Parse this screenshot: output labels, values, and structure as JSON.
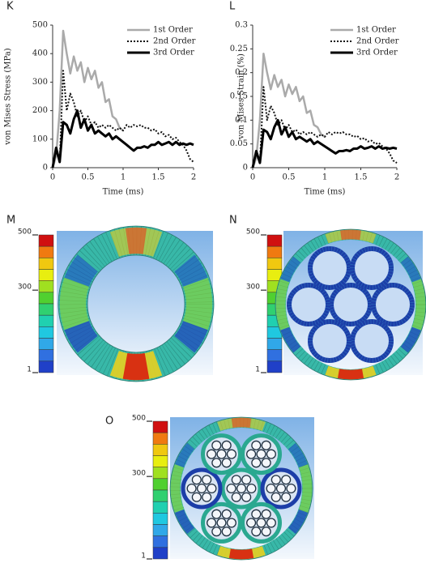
{
  "chart_data": [
    {
      "type": "line",
      "panel": "K",
      "ylabel": "von Mises Stress (MPa)",
      "xlabel": "Time (ms)",
      "xlim": [
        0,
        2
      ],
      "xticks": [
        0,
        0.5,
        1,
        1.5,
        2
      ],
      "ylim": [
        0,
        500
      ],
      "yticks": [
        0,
        100,
        200,
        300,
        400,
        500
      ],
      "legend": "top-right",
      "x": [
        0,
        0.05,
        0.1,
        0.15,
        0.2,
        0.25,
        0.3,
        0.35,
        0.4,
        0.45,
        0.5,
        0.55,
        0.6,
        0.65,
        0.7,
        0.75,
        0.8,
        0.85,
        0.9,
        0.95,
        1,
        1.05,
        1.1,
        1.15,
        1.2,
        1.25,
        1.3,
        1.35,
        1.4,
        1.45,
        1.5,
        1.55,
        1.6,
        1.65,
        1.7,
        1.75,
        1.8,
        1.85,
        1.9,
        1.95,
        2
      ],
      "series": [
        {
          "name": "1st Order",
          "color": "#aaaaaa",
          "style": "solid",
          "width": 2.5,
          "values": [
            0,
            40,
            200,
            480,
            400,
            330,
            390,
            340,
            370,
            300,
            350,
            310,
            340,
            280,
            300,
            230,
            240,
            180,
            170,
            140,
            130,
            null,
            null,
            null,
            null,
            null,
            null,
            null,
            null,
            null,
            null,
            null,
            null,
            null,
            null,
            null,
            null,
            null,
            null,
            null,
            null
          ]
        },
        {
          "name": "2nd Order",
          "color": "#111111",
          "style": "dotted",
          "width": 2,
          "values": [
            0,
            60,
            20,
            340,
            200,
            260,
            230,
            180,
            200,
            160,
            180,
            150,
            160,
            140,
            150,
            140,
            150,
            140,
            130,
            140,
            130,
            150,
            140,
            150,
            145,
            150,
            140,
            140,
            130,
            135,
            120,
            125,
            110,
            115,
            100,
            105,
            90,
            80,
            60,
            30,
            20
          ]
        },
        {
          "name": "3rd Order",
          "color": "#000000",
          "style": "solid",
          "width": 3,
          "values": [
            0,
            70,
            20,
            160,
            150,
            120,
            170,
            200,
            140,
            170,
            130,
            150,
            120,
            130,
            120,
            110,
            120,
            100,
            110,
            100,
            90,
            80,
            70,
            60,
            70,
            70,
            75,
            70,
            80,
            80,
            90,
            80,
            85,
            90,
            80,
            90,
            80,
            85,
            80,
            85,
            80
          ]
        }
      ]
    },
    {
      "type": "line",
      "panel": "L",
      "ylabel": "von Mises Strain (%)",
      "xlabel": "Time (ms)",
      "xlim": [
        0,
        2
      ],
      "xticks": [
        0,
        0.5,
        1,
        1.5,
        2
      ],
      "ylim": [
        0,
        0.3
      ],
      "yticks": [
        0,
        0.05,
        0.1,
        0.15,
        0.2,
        0.25,
        0.3
      ],
      "legend": "top-right",
      "x": [
        0,
        0.05,
        0.1,
        0.15,
        0.2,
        0.25,
        0.3,
        0.35,
        0.4,
        0.45,
        0.5,
        0.55,
        0.6,
        0.65,
        0.7,
        0.75,
        0.8,
        0.85,
        0.9,
        0.95,
        1,
        1.05,
        1.1,
        1.15,
        1.2,
        1.25,
        1.3,
        1.35,
        1.4,
        1.45,
        1.5,
        1.55,
        1.6,
        1.65,
        1.7,
        1.75,
        1.8,
        1.85,
        1.9,
        1.95,
        2
      ],
      "series": [
        {
          "name": "1st Order",
          "color": "#aaaaaa",
          "style": "solid",
          "width": 2.5,
          "values": [
            0,
            0.02,
            0.1,
            0.24,
            0.2,
            0.165,
            0.195,
            0.17,
            0.185,
            0.15,
            0.175,
            0.155,
            0.17,
            0.14,
            0.15,
            0.115,
            0.12,
            0.09,
            0.085,
            0.07,
            0.065,
            null,
            null,
            null,
            null,
            null,
            null,
            null,
            null,
            null,
            null,
            null,
            null,
            null,
            null,
            null,
            null,
            null,
            null,
            null,
            null
          ]
        },
        {
          "name": "2nd Order",
          "color": "#111111",
          "style": "dotted",
          "width": 2,
          "values": [
            0,
            0.03,
            0.01,
            0.17,
            0.1,
            0.13,
            0.115,
            0.09,
            0.1,
            0.08,
            0.09,
            0.075,
            0.08,
            0.07,
            0.075,
            0.07,
            0.075,
            0.07,
            0.065,
            0.07,
            0.065,
            0.075,
            0.07,
            0.075,
            0.072,
            0.075,
            0.07,
            0.07,
            0.065,
            0.067,
            0.06,
            0.062,
            0.055,
            0.057,
            0.05,
            0.052,
            0.045,
            0.04,
            0.03,
            0.015,
            0.01
          ]
        },
        {
          "name": "3rd Order",
          "color": "#000000",
          "style": "solid",
          "width": 3,
          "values": [
            0,
            0.035,
            0.01,
            0.08,
            0.075,
            0.06,
            0.085,
            0.1,
            0.07,
            0.085,
            0.065,
            0.075,
            0.06,
            0.065,
            0.06,
            0.055,
            0.06,
            0.05,
            0.055,
            0.05,
            0.045,
            0.04,
            0.035,
            0.03,
            0.035,
            0.035,
            0.037,
            0.035,
            0.04,
            0.04,
            0.045,
            0.04,
            0.042,
            0.045,
            0.04,
            0.045,
            0.04,
            0.042,
            0.04,
            0.042,
            0.04
          ]
        }
      ]
    }
  ],
  "colorbar_colors": [
    "#d01010",
    "#f07a10",
    "#f0c810",
    "#e8ee10",
    "#a0e020",
    "#50d030",
    "#30d070",
    "#20d0b0",
    "#20c8e0",
    "#30a8e8",
    "#3070e0",
    "#2040c8"
  ],
  "panels": [
    {
      "label": "M",
      "colorbar": {
        "lim": [
          1,
          500
        ],
        "ticks": [
          500,
          300,
          1
        ]
      }
    },
    {
      "label": "N",
      "colorbar": {
        "lim": [
          1,
          500
        ],
        "ticks": [
          500,
          300,
          1
        ]
      }
    },
    {
      "label": "O",
      "colorbar": {
        "lim": [
          1,
          500
        ],
        "ticks": [
          500,
          300,
          1
        ]
      }
    }
  ]
}
